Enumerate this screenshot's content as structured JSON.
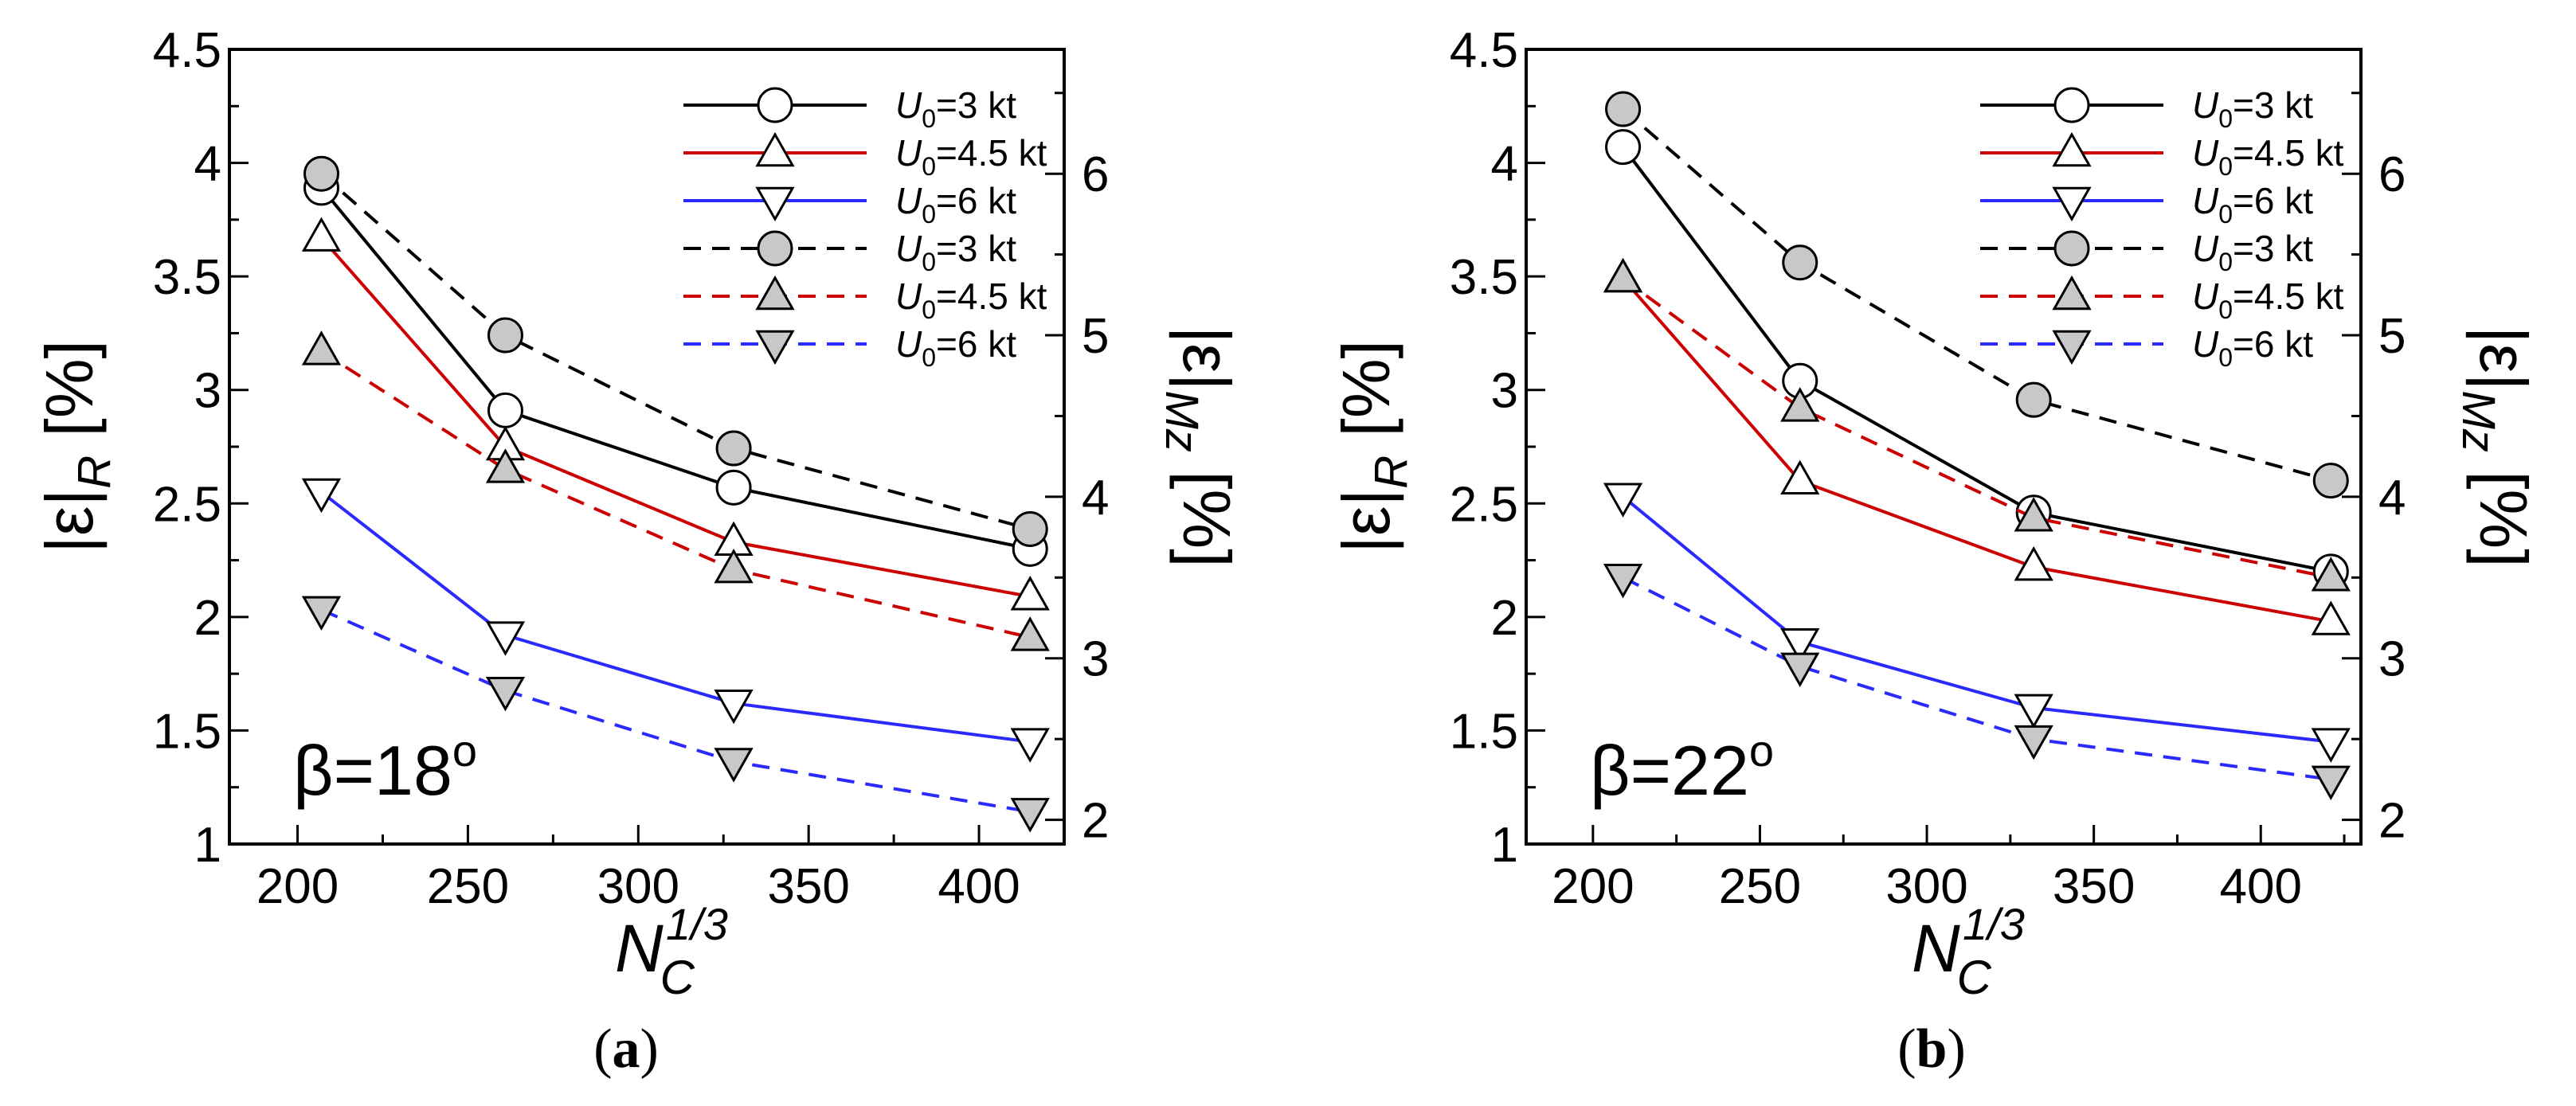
{
  "chart_data": [
    {
      "type": "line",
      "panel_label": "(a)",
      "annotation": {
        "base": "β=18",
        "sup": "o"
      },
      "xlabel": {
        "base": "N",
        "sub": "C",
        "sup": "1/3"
      },
      "ylabel_left": {
        "base": "|ε|",
        "sub": "R",
        "unit": "[%]"
      },
      "ylabel_right": {
        "base": "|ε|",
        "sub": "Mz",
        "unit": "[%]"
      },
      "xlim": [
        180,
        425
      ],
      "ylim_left": [
        1,
        4.5
      ],
      "ylim_right": [
        1.85,
        6.77
      ],
      "xticks": [
        200,
        250,
        300,
        350,
        400
      ],
      "xtick_labels": [
        "200",
        "250",
        "300",
        "350",
        "400"
      ],
      "yticks_left": [
        1,
        1.5,
        2,
        2.5,
        3,
        3.5,
        4,
        4.5
      ],
      "ytick_labels_left": [
        "1",
        "1.5",
        "2",
        "2.5",
        "3",
        "3.5",
        "4",
        "4.5"
      ],
      "yticks_right": [
        2,
        3,
        4,
        5,
        6
      ],
      "ytick_labels_right": [
        "2",
        "3",
        "4",
        "5",
        "6"
      ],
      "x": [
        207,
        261,
        328,
        415
      ],
      "series": [
        {
          "name": "U",
          "sub": "0",
          "label_rest": "=3 kt",
          "axis": "left",
          "color": "#000000",
          "dash": "solid",
          "marker": "circle",
          "fill": "#ffffff",
          "values": [
            3.89,
            2.91,
            2.57,
            2.3
          ]
        },
        {
          "name": "U",
          "sub": "0",
          "label_rest": "=4.5 kt",
          "axis": "left",
          "color": "#cc0000",
          "dash": "solid",
          "marker": "triangle-up",
          "fill": "#ffffff",
          "values": [
            3.67,
            2.75,
            2.33,
            2.09
          ]
        },
        {
          "name": "U",
          "sub": "0",
          "label_rest": "=6 kt",
          "axis": "left",
          "color": "#2a2aff",
          "dash": "solid",
          "marker": "triangle-down",
          "fill": "#ffffff",
          "values": [
            2.55,
            1.92,
            1.62,
            1.45
          ]
        },
        {
          "name": "U",
          "sub": "0",
          "label_rest": "=3 kt",
          "axis": "right",
          "color": "#000000",
          "dash": "dashed",
          "marker": "circle",
          "fill": "#c8c8c8",
          "values": [
            6.0,
            5.0,
            4.3,
            3.8
          ]
        },
        {
          "name": "U",
          "sub": "0",
          "label_rest": "=4.5 kt",
          "axis": "right",
          "color": "#cc0000",
          "dash": "dashed",
          "marker": "triangle-up",
          "fill": "#c8c8c8",
          "values": [
            4.9,
            4.17,
            3.55,
            3.13
          ]
        },
        {
          "name": "U",
          "sub": "0",
          "label_rest": "=6 kt",
          "axis": "right",
          "color": "#2a2aff",
          "dash": "dashed",
          "marker": "triangle-down",
          "fill": "#c8c8c8",
          "values": [
            3.3,
            2.8,
            2.36,
            2.05
          ]
        }
      ]
    },
    {
      "type": "line",
      "panel_label": "(b)",
      "annotation": {
        "base": "β=22",
        "sup": "o"
      },
      "xlabel": {
        "base": "N",
        "sub": "C",
        "sup": "1/3"
      },
      "ylabel_left": {
        "base": "|ε|",
        "sub": "R",
        "unit": "[%]"
      },
      "ylabel_right": {
        "base": "|ε|",
        "sub": "Mz",
        "unit": "[%]"
      },
      "xlim": [
        180,
        430
      ],
      "ylim_left": [
        1,
        4.5
      ],
      "ylim_right": [
        1.85,
        6.77
      ],
      "xticks": [
        200,
        250,
        300,
        350,
        400
      ],
      "xtick_labels": [
        "200",
        "250",
        "300",
        "350",
        "400"
      ],
      "yticks_left": [
        1,
        1.5,
        2,
        2.5,
        3,
        3.5,
        4,
        4.5
      ],
      "ytick_labels_left": [
        "1",
        "1.5",
        "2",
        "2.5",
        "3",
        "3.5",
        "4",
        "4.5"
      ],
      "yticks_right": [
        2,
        3,
        4,
        5,
        6
      ],
      "ytick_labels_right": [
        "2",
        "3",
        "4",
        "5",
        "6"
      ],
      "x": [
        209,
        262,
        332,
        421
      ],
      "series": [
        {
          "name": "U",
          "sub": "0",
          "label_rest": "=3 kt",
          "axis": "left",
          "color": "#000000",
          "dash": "solid",
          "marker": "circle",
          "fill": "#ffffff",
          "values": [
            4.07,
            3.04,
            2.46,
            2.2
          ]
        },
        {
          "name": "U",
          "sub": "0",
          "label_rest": "=4.5 kt",
          "axis": "left",
          "color": "#cc0000",
          "dash": "solid",
          "marker": "triangle-up",
          "fill": "#ffffff",
          "values": [
            3.49,
            2.6,
            2.22,
            1.98
          ]
        },
        {
          "name": "U",
          "sub": "0",
          "label_rest": "=6 kt",
          "axis": "left",
          "color": "#2a2aff",
          "dash": "solid",
          "marker": "triangle-down",
          "fill": "#ffffff",
          "values": [
            2.53,
            1.89,
            1.6,
            1.45
          ]
        },
        {
          "name": "U",
          "sub": "0",
          "label_rest": "=3 kt",
          "axis": "right",
          "color": "#000000",
          "dash": "dashed",
          "marker": "circle",
          "fill": "#c8c8c8",
          "values": [
            6.4,
            5.45,
            4.6,
            4.1
          ]
        },
        {
          "name": "U",
          "sub": "0",
          "label_rest": "=4.5 kt",
          "axis": "right",
          "color": "#cc0000",
          "dash": "dashed",
          "marker": "triangle-up",
          "fill": "#c8c8c8",
          "values": [
            5.35,
            4.55,
            3.87,
            3.5
          ]
        },
        {
          "name": "U",
          "sub": "0",
          "label_rest": "=6 kt",
          "axis": "right",
          "color": "#2a2aff",
          "dash": "dashed",
          "marker": "triangle-down",
          "fill": "#c8c8c8",
          "values": [
            3.5,
            2.95,
            2.5,
            2.25
          ]
        }
      ]
    }
  ]
}
